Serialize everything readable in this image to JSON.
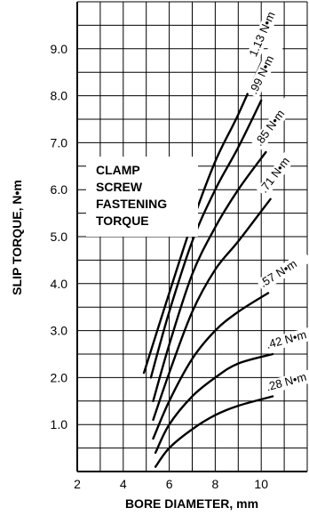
{
  "chart_data": {
    "type": "line",
    "xlabel": "BORE DIAMETER, mm",
    "ylabel": "SLIP TORQUE, N•m",
    "xlim": [
      2,
      12
    ],
    "ylim": [
      0,
      10
    ],
    "x_ticks": [
      "2",
      "4",
      "6",
      "8",
      "10"
    ],
    "y_ticks": [
      "1.0",
      "2.0",
      "3.0",
      "4.0",
      "5.0",
      "6.0",
      "7.0",
      "8.0",
      "9.0"
    ],
    "grid": true,
    "annotation_lines": [
      "CLAMP",
      "SCREW",
      "FASTENING",
      "TORQUE"
    ],
    "series": [
      {
        "name": "1.13 N•m",
        "points": [
          [
            4.9,
            2.1
          ],
          [
            6.0,
            3.8
          ],
          [
            7.0,
            5.3
          ],
          [
            8.0,
            6.6
          ],
          [
            9.0,
            7.6
          ],
          [
            10.0,
            8.7
          ]
        ]
      },
      {
        "name": ".99 N•m",
        "points": [
          [
            5.2,
            2.0
          ],
          [
            6.0,
            3.4
          ],
          [
            7.0,
            4.9
          ],
          [
            8.0,
            6.0
          ],
          [
            9.0,
            6.9
          ],
          [
            10.0,
            7.9
          ]
        ]
      },
      {
        "name": ".85 N•m",
        "points": [
          [
            5.3,
            1.5
          ],
          [
            6.0,
            2.7
          ],
          [
            7.0,
            4.2
          ],
          [
            8.0,
            5.2
          ],
          [
            9.0,
            6.0
          ],
          [
            10.2,
            6.8
          ]
        ]
      },
      {
        "name": ".71 N•m",
        "points": [
          [
            5.3,
            1.1
          ],
          [
            6.0,
            2.1
          ],
          [
            7.0,
            3.4
          ],
          [
            8.0,
            4.3
          ],
          [
            9.0,
            4.9
          ],
          [
            10.4,
            5.8
          ]
        ]
      },
      {
        "name": ".57 N•m",
        "points": [
          [
            5.3,
            0.7
          ],
          [
            6.0,
            1.5
          ],
          [
            7.0,
            2.4
          ],
          [
            8.0,
            3.0
          ],
          [
            9.0,
            3.4
          ],
          [
            10.3,
            3.8
          ]
        ]
      },
      {
        "name": ".42 N•m",
        "points": [
          [
            5.4,
            0.4
          ],
          [
            6.0,
            1.0
          ],
          [
            7.0,
            1.6
          ],
          [
            8.0,
            2.0
          ],
          [
            9.0,
            2.3
          ],
          [
            10.5,
            2.5
          ]
        ]
      },
      {
        "name": ".28 N•m",
        "points": [
          [
            5.4,
            0.1
          ],
          [
            6.0,
            0.5
          ],
          [
            7.0,
            0.9
          ],
          [
            8.0,
            1.2
          ],
          [
            9.0,
            1.4
          ],
          [
            10.5,
            1.6
          ]
        ]
      }
    ]
  }
}
